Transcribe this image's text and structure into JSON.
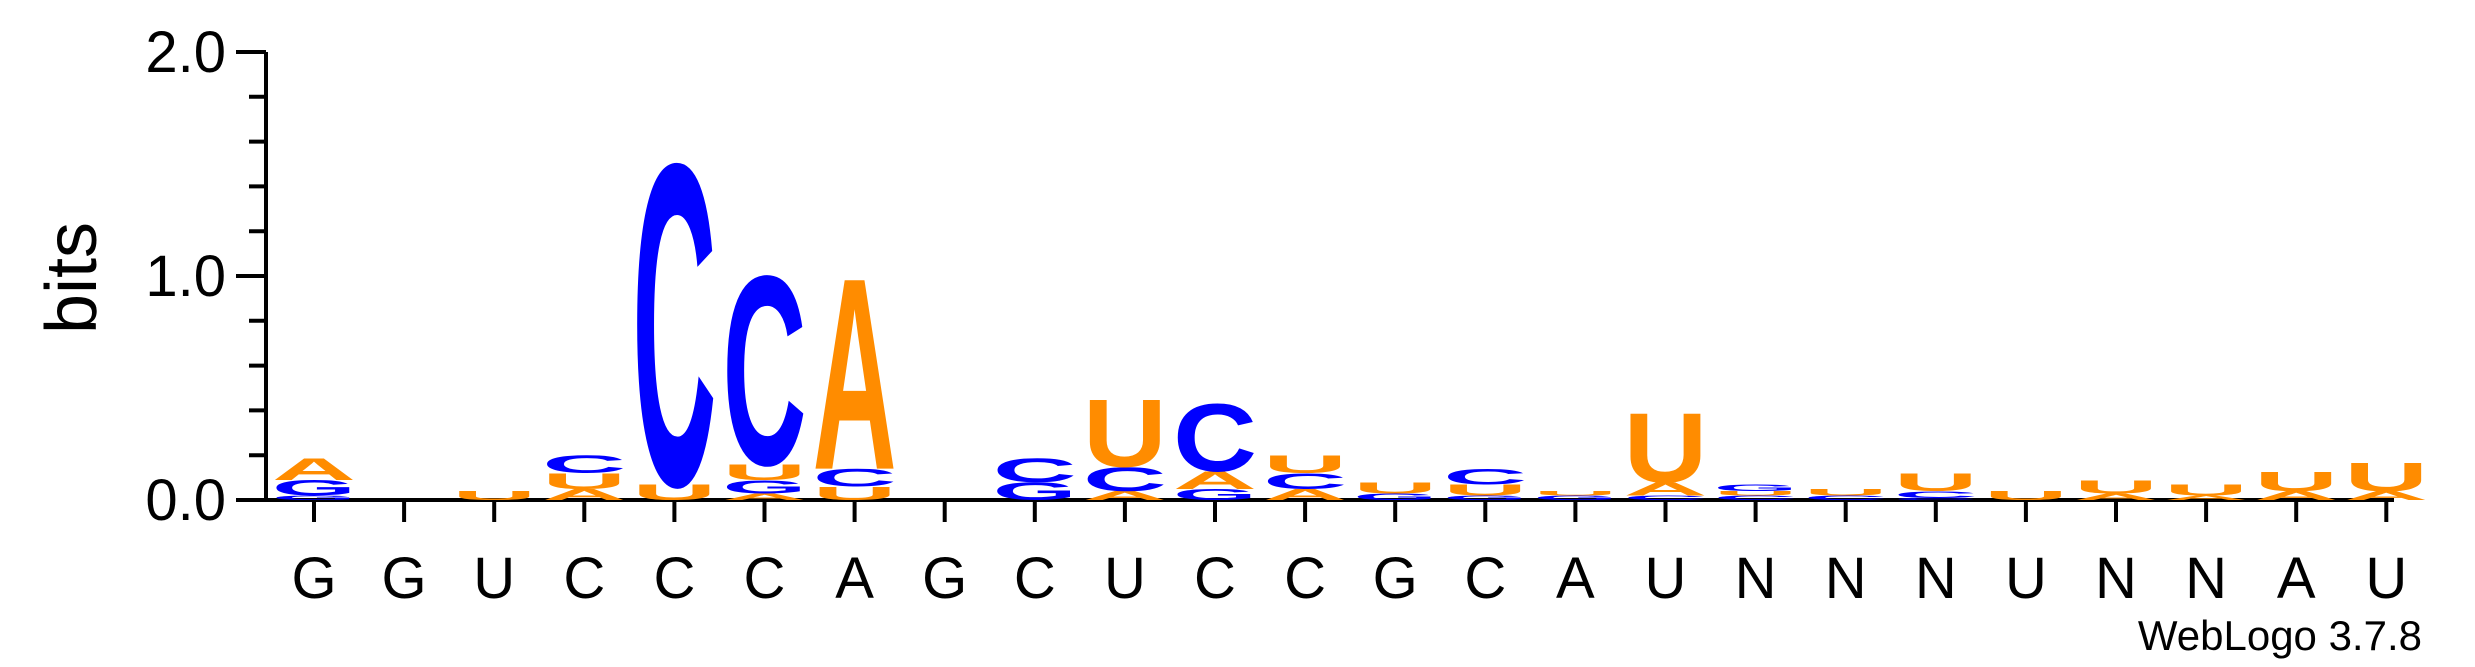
{
  "chart_data": {
    "type": "sequence-logo",
    "ylabel": "bits",
    "ylim": [
      0,
      2.0
    ],
    "yticks": [
      "0.0",
      "1.0",
      "2.0"
    ],
    "credit": "WebLogo 3.7.8",
    "colors": {
      "A": "#FF8C00",
      "U": "#FF8C00",
      "C": "#0000FF",
      "G": "#0000FF"
    },
    "positions": [
      {
        "label": "G",
        "stack": [
          [
            "G",
            0.02
          ],
          [
            "G",
            0.07
          ],
          [
            "A",
            0.1
          ]
        ]
      },
      {
        "label": "G",
        "stack": []
      },
      {
        "label": "U",
        "stack": [
          [
            "U",
            0.04
          ]
        ]
      },
      {
        "label": "C",
        "stack": [
          [
            "A",
            0.05
          ],
          [
            "U",
            0.07
          ],
          [
            "C",
            0.08
          ]
        ]
      },
      {
        "label": "C",
        "stack": [
          [
            "U",
            0.07
          ],
          [
            "C",
            1.48
          ]
        ]
      },
      {
        "label": "C",
        "stack": [
          [
            "A",
            0.03
          ],
          [
            "G",
            0.06
          ],
          [
            "U",
            0.07
          ],
          [
            "C",
            0.87
          ]
        ]
      },
      {
        "label": "A",
        "stack": [
          [
            "U",
            0.06
          ],
          [
            "C",
            0.08
          ],
          [
            "A",
            0.88
          ]
        ]
      },
      {
        "label": "G",
        "stack": []
      },
      {
        "label": "C",
        "stack": [
          [
            "G",
            0.08
          ],
          [
            "C",
            0.11
          ]
        ]
      },
      {
        "label": "U",
        "stack": [
          [
            "A",
            0.04
          ],
          [
            "C",
            0.11
          ],
          [
            "U",
            0.31
          ]
        ]
      },
      {
        "label": "C",
        "stack": [
          [
            "G",
            0.05
          ],
          [
            "A",
            0.08
          ],
          [
            "C",
            0.31
          ]
        ]
      },
      {
        "label": "C",
        "stack": [
          [
            "A",
            0.05
          ],
          [
            "C",
            0.07
          ],
          [
            "U",
            0.08
          ]
        ]
      },
      {
        "label": "G",
        "stack": [
          [
            "G",
            0.03
          ],
          [
            "U",
            0.05
          ]
        ]
      },
      {
        "label": "C",
        "stack": [
          [
            "G",
            0.02
          ],
          [
            "U",
            0.05
          ],
          [
            "C",
            0.07
          ]
        ]
      },
      {
        "label": "A",
        "stack": [
          [
            "G",
            0.02
          ],
          [
            "U",
            0.02
          ]
        ]
      },
      {
        "label": "U",
        "stack": [
          [
            "C",
            0.02
          ],
          [
            "A",
            0.06
          ],
          [
            "U",
            0.32
          ]
        ]
      },
      {
        "label": "N",
        "stack": [
          [
            "C",
            0.02
          ],
          [
            "U",
            0.02
          ],
          [
            "G",
            0.03
          ]
        ]
      },
      {
        "label": "N",
        "stack": [
          [
            "C",
            0.02
          ],
          [
            "U",
            0.03
          ]
        ]
      },
      {
        "label": "N",
        "stack": [
          [
            "C",
            0.01
          ],
          [
            "C",
            0.03
          ],
          [
            "U",
            0.08
          ]
        ]
      },
      {
        "label": "U",
        "stack": [
          [
            "U",
            0.04
          ]
        ]
      },
      {
        "label": "N",
        "stack": [
          [
            "A",
            0.03
          ],
          [
            "U",
            0.06
          ]
        ]
      },
      {
        "label": "N",
        "stack": [
          [
            "A",
            0.02
          ],
          [
            "U",
            0.05
          ]
        ]
      },
      {
        "label": "A",
        "stack": [
          [
            "A",
            0.04
          ],
          [
            "U",
            0.09
          ]
        ]
      },
      {
        "label": "U",
        "stack": [
          [
            "A",
            0.04
          ],
          [
            "U",
            0.13
          ]
        ]
      }
    ]
  }
}
